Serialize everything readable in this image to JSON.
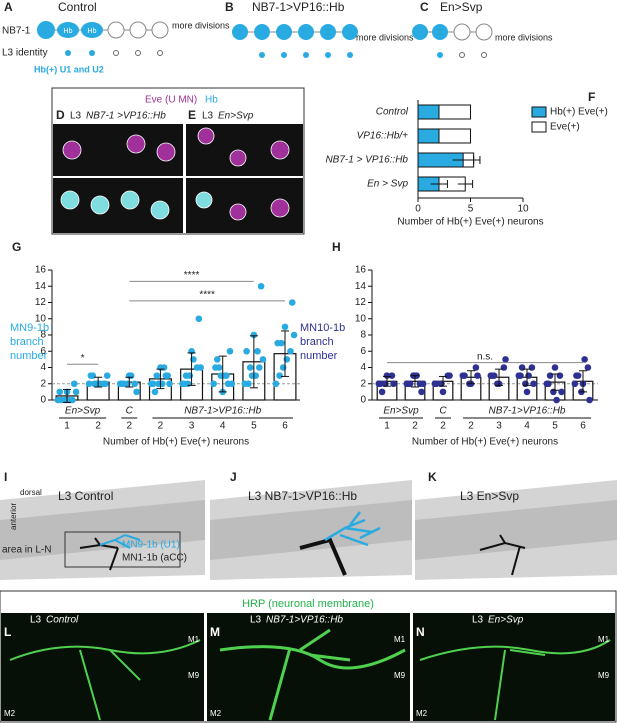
{
  "panels": {
    "A": {
      "letter": "A",
      "title": "Control",
      "cell": "NB7-1",
      "identity": "L3 identity",
      "more": "more divisions",
      "hb1": "Hb",
      "hb2": "Hb",
      "note": "Hb(+) U1 and U2"
    },
    "B": {
      "letter": "B",
      "title": "NB7-1>VP16::Hb",
      "more": "more divisions"
    },
    "C": {
      "letter": "C",
      "title": "En>Svp",
      "more": "more divisions"
    },
    "DE": {
      "eve": "Eve (U MN)",
      "hb": "Hb",
      "d_letter": "D",
      "d_prefix": "L3",
      "d_genotype": "NB7-1 >VP16::Hb",
      "e_letter": "E",
      "e_prefix": "L3",
      "e_genotype": "En>Svp"
    },
    "I": {
      "letter": "I",
      "title": "L3 Control",
      "dorsal": "dorsal",
      "anterior": "anterior",
      "area": "area in L-N",
      "mn9": "MN9-1b (U1)",
      "mn1": "MN1-1b (aCC)"
    },
    "J": {
      "letter": "J",
      "title": "L3 NB7-1>VP16::Hb"
    },
    "K": {
      "letter": "K",
      "title": "L3 En>Svp"
    },
    "LMN": {
      "title": "HRP (neuronal membrane)",
      "L": {
        "letter": "L",
        "prefix": "L3",
        "genotype": "Control",
        "m1": "M1",
        "m9": "M9",
        "m2": "M2"
      },
      "M": {
        "letter": "M",
        "prefix": "L3",
        "genotype": "NB7-1>VP16::Hb",
        "m1": "M1",
        "m9": "M9",
        "m2": "M2"
      },
      "N": {
        "letter": "N",
        "prefix": "L3",
        "genotype": "En>Svp",
        "m1": "M1",
        "m9": "M9",
        "m2": "M2"
      }
    }
  },
  "chart_data": [
    {
      "type": "hbar",
      "letter": "F",
      "categories": [
        "Control",
        "VP16::Hb/+",
        "NB7-1 > VP16::Hb",
        "En > Svp"
      ],
      "series": [
        {
          "name": "Hb(+) Eve(+)",
          "color": "#29abe2",
          "values": [
            2,
            2,
            4.3,
            2
          ],
          "errors": [
            null,
            null,
            1,
            0.8
          ]
        },
        {
          "name": "Eve(+)",
          "color": "#ffffff",
          "values": [
            5,
            5,
            5.3,
            4.5
          ],
          "errors": [
            null,
            null,
            0.6,
            0.7
          ]
        }
      ],
      "xlim": [
        0,
        10
      ],
      "xticks": [
        0,
        5,
        10
      ],
      "xlabel": "Number of Hb(+) Eve(+) neurons",
      "legend": "upper right"
    },
    {
      "type": "bar",
      "letter": "G",
      "ylabel": [
        "MN9-1b",
        "branch",
        "number"
      ],
      "color": "#29abe2",
      "categories": [
        "1",
        "2",
        "2",
        "2",
        "3",
        "4",
        "5",
        "6"
      ],
      "group_labels": [
        "En>Svp",
        "C",
        "NB7-1>VP16::Hb"
      ],
      "values": [
        0.5,
        2.2,
        2.2,
        2.6,
        3.8,
        3.2,
        4.7,
        5.7
      ],
      "errors": [
        0.8,
        0.6,
        0.6,
        1.2,
        2,
        2.2,
        3.2,
        2.8
      ],
      "points": [
        [
          0,
          0,
          0,
          1,
          1,
          2,
          0,
          0,
          1
        ],
        [
          2,
          2,
          2,
          3,
          2,
          2,
          3,
          2,
          3,
          2
        ],
        [
          2,
          2,
          2,
          2,
          3,
          1,
          2,
          3
        ],
        [
          2,
          2,
          3,
          2,
          4,
          3,
          1,
          2,
          2,
          3,
          4
        ],
        [
          2,
          3,
          4,
          2,
          6,
          10,
          3,
          5,
          4,
          2
        ],
        [
          2,
          3,
          2,
          4,
          1,
          6,
          5,
          3,
          2,
          4,
          3
        ],
        [
          2,
          3,
          4,
          6,
          8,
          14,
          2,
          3,
          5,
          4,
          6
        ],
        [
          2,
          4,
          6,
          7,
          9,
          12,
          3,
          5,
          8,
          7
        ]
      ],
      "ylim": [
        0,
        16
      ],
      "yticks": [
        0,
        2,
        4,
        6,
        8,
        10,
        12,
        14,
        16
      ],
      "reference_line": 2,
      "annotations": [
        "*",
        "****",
        "****"
      ],
      "xlabel": "Number of Hb(+) Eve(+) neurons"
    },
    {
      "type": "bar",
      "letter": "H",
      "ylabel": [
        "MN10-1b",
        "branch",
        "number"
      ],
      "color": "#2e3192",
      "categories": [
        "1",
        "2",
        "2",
        "2",
        "3",
        "4",
        "5",
        "6"
      ],
      "group_labels": [
        "En>Svp",
        "C",
        "NB7-1>VP16::Hb"
      ],
      "values": [
        2.3,
        2.3,
        2.3,
        2.8,
        2.8,
        2.8,
        2.2,
        2.3
      ],
      "errors": [
        0.6,
        0.7,
        0.6,
        0.8,
        1,
        1,
        1,
        1.3
      ],
      "points": [
        [
          2,
          2,
          3,
          2,
          3,
          2,
          1
        ],
        [
          2,
          3,
          2,
          2,
          3,
          1,
          2,
          3,
          2
        ],
        [
          2,
          2,
          3,
          2,
          1,
          3
        ],
        [
          3,
          2,
          4,
          3,
          2,
          3
        ],
        [
          3,
          2,
          4,
          3,
          2,
          5,
          3
        ],
        [
          3,
          2,
          4,
          3,
          1,
          2,
          4,
          3
        ],
        [
          2,
          1,
          3,
          2,
          4,
          1,
          3,
          0
        ],
        [
          2,
          1,
          4,
          3,
          2,
          0,
          3,
          5
        ]
      ],
      "ylim": [
        0,
        16
      ],
      "yticks": [
        0,
        2,
        4,
        6,
        8,
        10,
        12,
        14,
        16
      ],
      "reference_line": 2,
      "annotations": [
        "n.s."
      ],
      "xlabel": "Number of Hb(+) Eve(+) neurons"
    }
  ]
}
